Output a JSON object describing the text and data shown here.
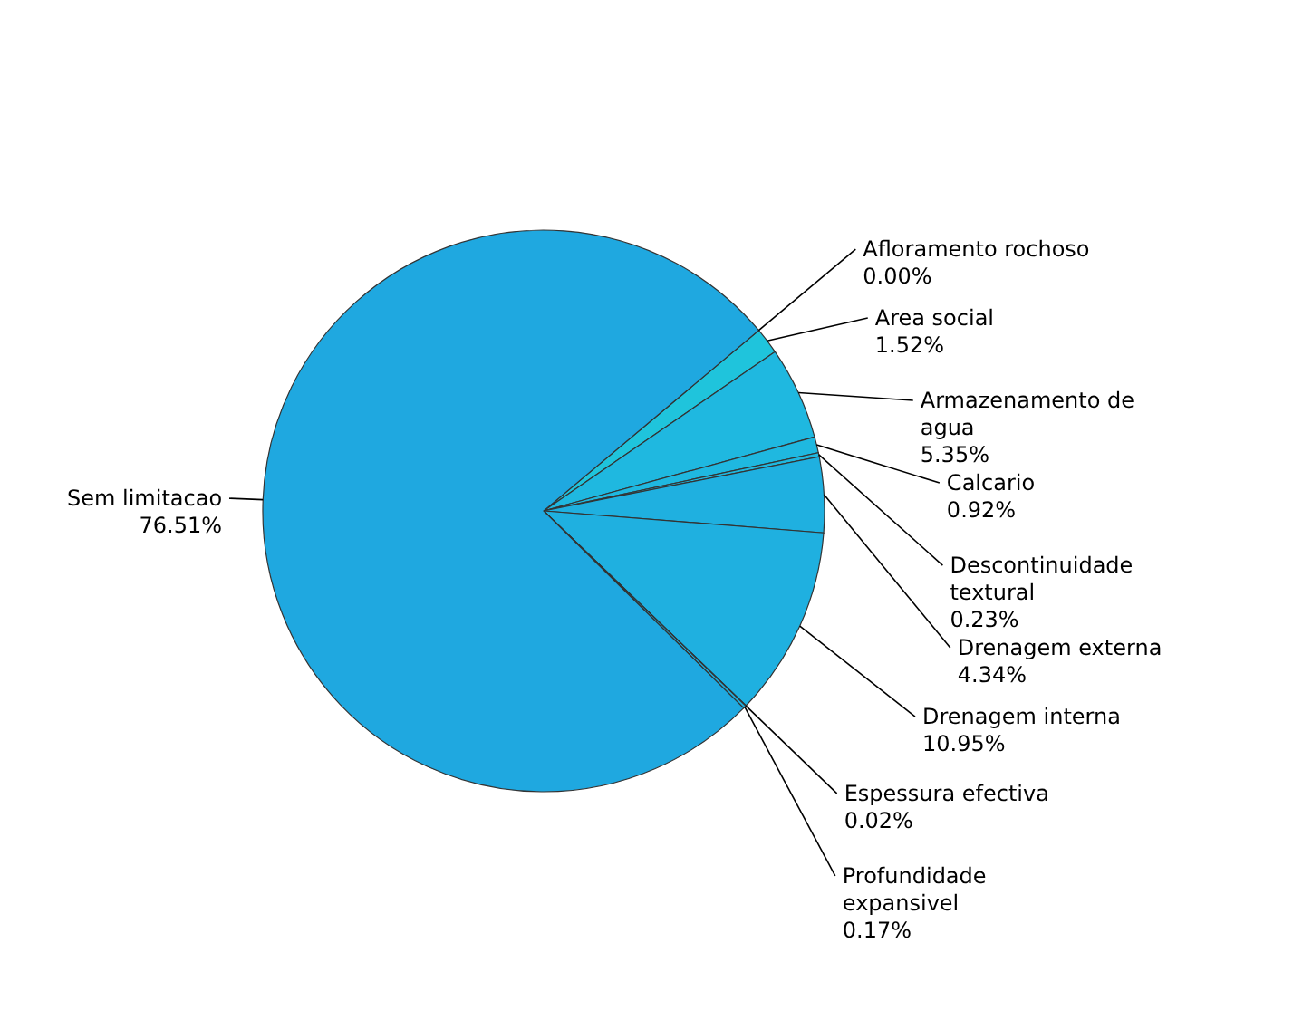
{
  "chart_data": {
    "type": "pie",
    "categories": [
      "Afloramento rochoso",
      "Area social",
      "Armazenamento de agua",
      "Calcario",
      "Descontinuidade textural",
      "Drenagem externa",
      "Drenagem interna",
      "Espessura efectiva",
      "Profundidade expansivel",
      "Sem limitacao"
    ],
    "values": [
      0.0,
      1.52,
      5.35,
      0.92,
      0.23,
      4.34,
      10.95,
      0.02,
      0.17,
      76.51
    ],
    "colors": [
      "#1fc4dc",
      "#1fc4dc",
      "#1fb8e0",
      "#1fb8e0",
      "#1fb8e0",
      "#1fb0e0",
      "#1fb0e0",
      "#1fb0e0",
      "#1fb0e0",
      "#1fa8e0"
    ],
    "value_labels": [
      "0.00%",
      "1.52%",
      "5.35%",
      "0.92%",
      "0.23%",
      "4.34%",
      "10.95%",
      "0.02%",
      "0.17%",
      "76.51%"
    ]
  }
}
